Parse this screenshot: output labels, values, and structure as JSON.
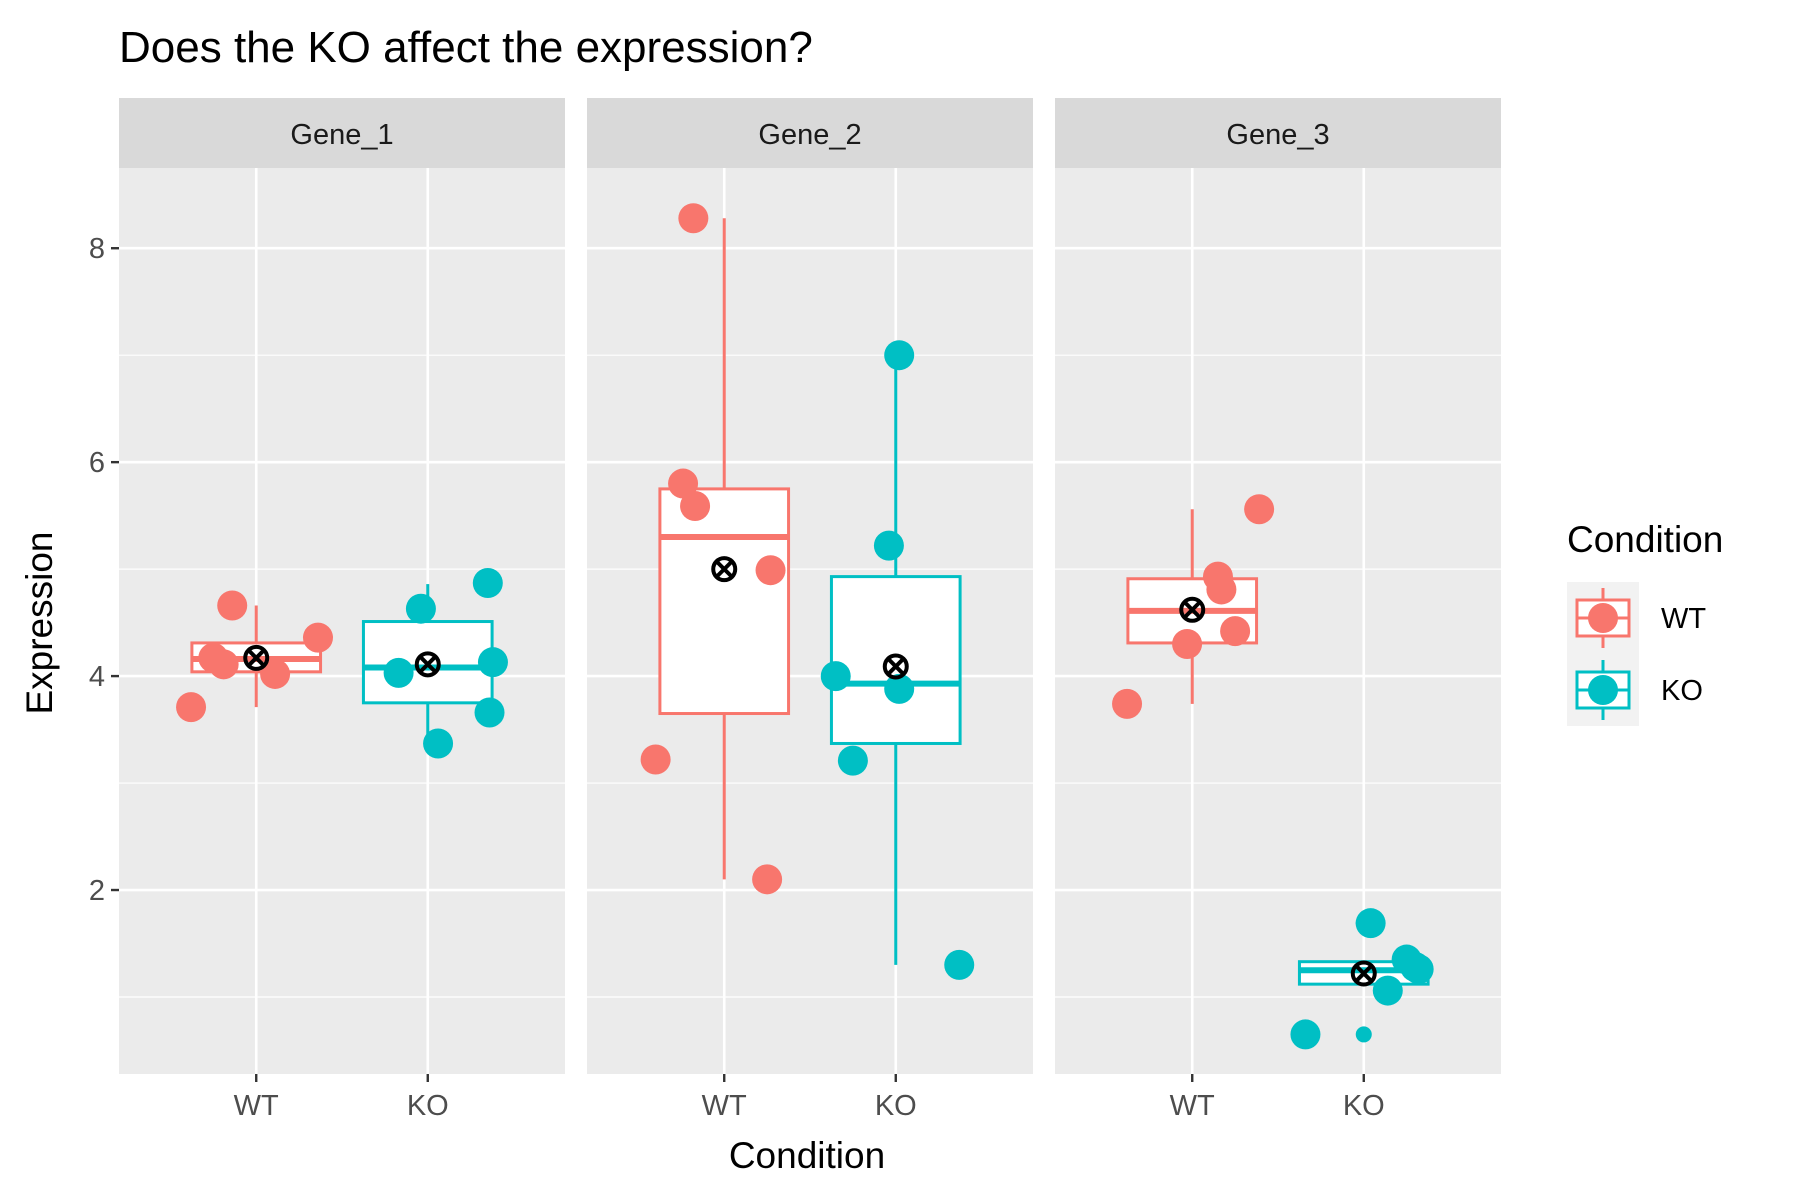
{
  "chart_data": {
    "type": "box",
    "title": "Does the KO affect the expression?",
    "xlabel": "Condition",
    "ylabel": "Expression",
    "ylim": [
      0.28,
      8.75
    ],
    "yticks": [
      2,
      4,
      6,
      8
    ],
    "grid": true,
    "facet_var": "Gene",
    "categories": [
      "WT",
      "KO"
    ],
    "legend": {
      "title": "Condition",
      "position": "right",
      "entries": [
        {
          "label": "WT",
          "color": "#F8766D"
        },
        {
          "label": "KO",
          "color": "#00BFC4"
        }
      ]
    },
    "mean_marker": "circled-x",
    "panels": [
      {
        "gene": "Gene_1",
        "groups": [
          {
            "condition": "WT",
            "color": "#F8766D",
            "box": {
              "min": 3.71,
              "q1": 4.04,
              "median": 4.16,
              "q3": 4.31,
              "max": 4.66
            },
            "mean": 4.17,
            "points": [
              {
                "jitter": -0.38,
                "y": 3.71
              },
              {
                "jitter": -0.25,
                "y": 4.17
              },
              {
                "jitter": -0.19,
                "y": 4.11
              },
              {
                "jitter": -0.14,
                "y": 4.66
              },
              {
                "jitter": 0.11,
                "y": 4.02
              },
              {
                "jitter": 0.36,
                "y": 4.36
              }
            ]
          },
          {
            "condition": "KO",
            "color": "#00BFC4",
            "box": {
              "min": 3.37,
              "q1": 3.75,
              "median": 4.08,
              "q3": 4.51,
              "max": 4.86
            },
            "mean": 4.11,
            "points": [
              {
                "jitter": -0.17,
                "y": 4.03
              },
              {
                "jitter": -0.04,
                "y": 4.63
              },
              {
                "jitter": 0.06,
                "y": 3.37
              },
              {
                "jitter": 0.35,
                "y": 4.87
              },
              {
                "jitter": 0.36,
                "y": 3.66
              },
              {
                "jitter": 0.38,
                "y": 4.13
              }
            ]
          }
        ]
      },
      {
        "gene": "Gene_2",
        "groups": [
          {
            "condition": "WT",
            "color": "#F8766D",
            "box": {
              "min": 2.1,
              "q1": 3.65,
              "median": 5.3,
              "q3": 5.75,
              "max": 8.28
            },
            "mean": 5.0,
            "points": [
              {
                "jitter": -0.4,
                "y": 3.22
              },
              {
                "jitter": -0.24,
                "y": 5.8
              },
              {
                "jitter": -0.18,
                "y": 8.28
              },
              {
                "jitter": -0.17,
                "y": 5.59
              },
              {
                "jitter": 0.25,
                "y": 2.1
              },
              {
                "jitter": 0.27,
                "y": 4.99
              }
            ]
          },
          {
            "condition": "KO",
            "color": "#00BFC4",
            "box": {
              "min": 1.3,
              "q1": 3.37,
              "median": 3.93,
              "q3": 4.93,
              "max": 7.0
            },
            "mean": 4.09,
            "points": [
              {
                "jitter": -0.35,
                "y": 4.0
              },
              {
                "jitter": -0.25,
                "y": 3.21
              },
              {
                "jitter": -0.04,
                "y": 5.22
              },
              {
                "jitter": 0.02,
                "y": 7.0
              },
              {
                "jitter": 0.02,
                "y": 3.88
              },
              {
                "jitter": 0.37,
                "y": 1.3
              }
            ]
          }
        ]
      },
      {
        "gene": "Gene_3",
        "groups": [
          {
            "condition": "WT",
            "color": "#F8766D",
            "box": {
              "min": 3.74,
              "q1": 4.31,
              "median": 4.61,
              "q3": 4.91,
              "max": 5.56
            },
            "mean": 4.62,
            "points": [
              {
                "jitter": -0.38,
                "y": 3.74
              },
              {
                "jitter": -0.03,
                "y": 4.3
              },
              {
                "jitter": 0.15,
                "y": 4.93
              },
              {
                "jitter": 0.17,
                "y": 4.81
              },
              {
                "jitter": 0.25,
                "y": 4.42
              },
              {
                "jitter": 0.39,
                "y": 5.56
              }
            ]
          },
          {
            "condition": "KO",
            "color": "#00BFC4",
            "box": {
              "min": 1.12,
              "q1": 1.12,
              "median": 1.25,
              "q3": 1.33,
              "max": 1.33
            },
            "mean": 1.22,
            "outliers": [
              0.65,
              1.69
            ],
            "points": [
              {
                "jitter": -0.34,
                "y": 0.65
              },
              {
                "jitter": 0.04,
                "y": 1.69
              },
              {
                "jitter": 0.14,
                "y": 1.06
              },
              {
                "jitter": 0.25,
                "y": 1.35
              },
              {
                "jitter": 0.3,
                "y": 1.28
              },
              {
                "jitter": 0.32,
                "y": 1.26
              }
            ]
          }
        ]
      }
    ]
  }
}
